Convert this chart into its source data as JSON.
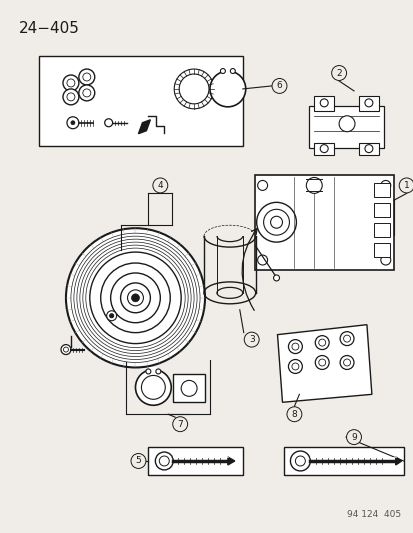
{
  "title": "24−405",
  "footer": "94 124  405",
  "bg_color": "#f0ede8",
  "fig_width": 4.14,
  "fig_height": 5.33,
  "dpi": 100
}
